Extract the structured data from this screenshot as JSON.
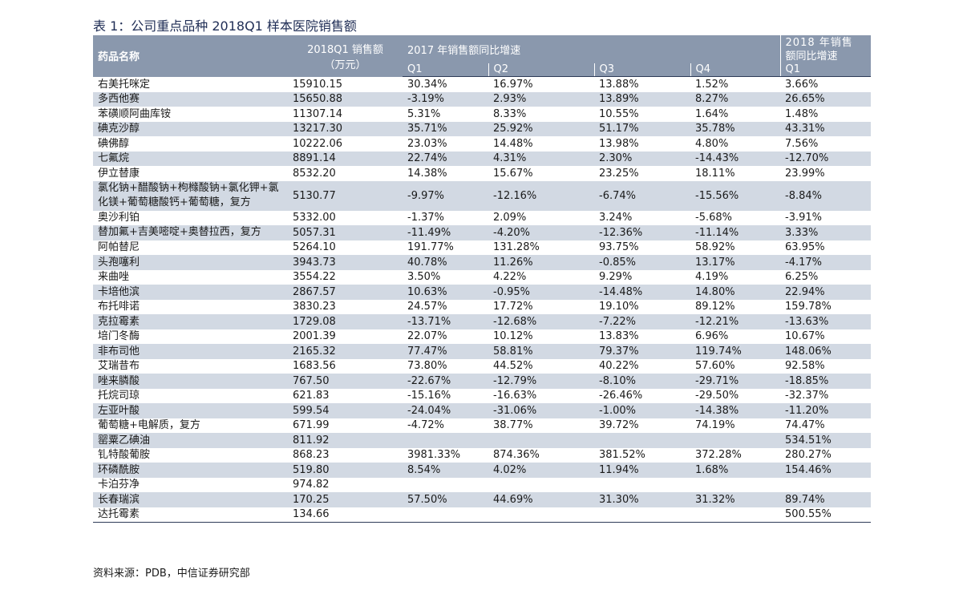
{
  "title": "表 1：公司重点品种 2018Q1 样本医院销售额",
  "header": {
    "drug_name": "药品名称",
    "sales_2018q1_line1": "2018Q1 销售额",
    "sales_2018q1_line2": "（万元）",
    "growth_2017": "2017 年销售额同比增速",
    "growth_2018_line1": "2018 年销售",
    "growth_2018_line2": "额同比增速",
    "quarters": [
      "Q1",
      "Q2",
      "Q3",
      "Q4"
    ],
    "q1_2018": "Q1"
  },
  "rows": [
    {
      "name": "右美托咪定",
      "sales": "15910.15",
      "q1": "30.34%",
      "q2": "16.97%",
      "q3": "13.88%",
      "q4": "1.52%",
      "y2018": "3.66%"
    },
    {
      "name": "多西他赛",
      "sales": "15650.88",
      "q1": "-3.19%",
      "q2": "2.93%",
      "q3": "13.89%",
      "q4": "8.27%",
      "y2018": "26.65%"
    },
    {
      "name": "苯磺顺阿曲库铵",
      "sales": "11307.14",
      "q1": "5.31%",
      "q2": "8.33%",
      "q3": "10.55%",
      "q4": "1.64%",
      "y2018": "1.48%"
    },
    {
      "name": "碘克沙醇",
      "sales": "13217.30",
      "q1": "35.71%",
      "q2": "25.92%",
      "q3": "51.17%",
      "q4": "35.78%",
      "y2018": "43.31%"
    },
    {
      "name": "碘佛醇",
      "sales": "10222.06",
      "q1": "23.03%",
      "q2": "14.48%",
      "q3": "13.98%",
      "q4": "4.80%",
      "y2018": "7.56%"
    },
    {
      "name": "七氟烷",
      "sales": "8891.14",
      "q1": "22.74%",
      "q2": "4.31%",
      "q3": "2.30%",
      "q4": "-14.43%",
      "y2018": "-12.70%"
    },
    {
      "name": "伊立替康",
      "sales": "8532.20",
      "q1": "14.38%",
      "q2": "15.67%",
      "q3": "23.25%",
      "q4": "18.11%",
      "y2018": "23.99%"
    },
    {
      "name": "氯化钠+醋酸钠+枸橼酸钠+氯化钾+氯化镁+葡萄糖酸钙+葡萄糖，复方",
      "sales": "5130.77",
      "q1": "-9.97%",
      "q2": "-12.16%",
      "q3": "-6.74%",
      "q4": "-15.56%",
      "y2018": "-8.84%"
    },
    {
      "name": "奥沙利铂",
      "sales": "5332.00",
      "q1": "-1.37%",
      "q2": "2.09%",
      "q3": "3.24%",
      "q4": "-5.68%",
      "y2018": "-3.91%"
    },
    {
      "name": "替加氟+吉美嘧啶+奥替拉西，复方",
      "sales": "5057.31",
      "q1": "-11.49%",
      "q2": "-4.20%",
      "q3": "-12.36%",
      "q4": "-11.14%",
      "y2018": "3.33%"
    },
    {
      "name": "阿帕替尼",
      "sales": "5264.10",
      "q1": "191.77%",
      "q2": "131.28%",
      "q3": "93.75%",
      "q4": "58.92%",
      "y2018": "63.95%"
    },
    {
      "name": "头孢噻利",
      "sales": "3943.73",
      "q1": "40.78%",
      "q2": "11.26%",
      "q3": "-0.85%",
      "q4": "13.17%",
      "y2018": "-4.17%"
    },
    {
      "name": "来曲唑",
      "sales": "3554.22",
      "q1": "3.50%",
      "q2": "4.22%",
      "q3": "9.29%",
      "q4": "4.19%",
      "y2018": "6.25%"
    },
    {
      "name": "卡培他滨",
      "sales": "2867.57",
      "q1": "10.63%",
      "q2": "-0.95%",
      "q3": "-14.48%",
      "q4": "14.80%",
      "y2018": "22.94%"
    },
    {
      "name": "布托啡诺",
      "sales": "3830.23",
      "q1": "24.57%",
      "q2": "17.72%",
      "q3": "19.10%",
      "q4": "89.12%",
      "y2018": "159.78%"
    },
    {
      "name": "克拉霉素",
      "sales": "1729.08",
      "q1": "-13.71%",
      "q2": "-12.68%",
      "q3": "-7.22%",
      "q4": "-12.21%",
      "y2018": "-13.63%"
    },
    {
      "name": "培门冬酶",
      "sales": "2001.39",
      "q1": "22.07%",
      "q2": "10.12%",
      "q3": "13.83%",
      "q4": "6.96%",
      "y2018": "10.67%"
    },
    {
      "name": "非布司他",
      "sales": "2165.32",
      "q1": "77.47%",
      "q2": "58.81%",
      "q3": "79.37%",
      "q4": "119.74%",
      "y2018": "148.06%"
    },
    {
      "name": "艾瑞昔布",
      "sales": "1683.56",
      "q1": "73.80%",
      "q2": "44.52%",
      "q3": "40.22%",
      "q4": "57.60%",
      "y2018": "92.58%"
    },
    {
      "name": "唑来膦酸",
      "sales": "767.50",
      "q1": "-22.67%",
      "q2": "-12.79%",
      "q3": "-8.10%",
      "q4": "-29.71%",
      "y2018": "-18.85%"
    },
    {
      "name": "托烷司琼",
      "sales": "621.83",
      "q1": "-15.16%",
      "q2": "-16.63%",
      "q3": "-26.46%",
      "q4": "-29.50%",
      "y2018": "-32.37%"
    },
    {
      "name": "左亚叶酸",
      "sales": "599.54",
      "q1": "-24.04%",
      "q2": "-31.06%",
      "q3": "-1.00%",
      "q4": "-14.38%",
      "y2018": "-11.20%"
    },
    {
      "name": "葡萄糖+电解质，复方",
      "sales": "671.99",
      "q1": "-4.72%",
      "q2": "38.77%",
      "q3": "39.72%",
      "q4": "74.19%",
      "y2018": "74.47%"
    },
    {
      "name": "罂粟乙碘油",
      "sales": "811.92",
      "q1": "",
      "q2": "",
      "q3": "",
      "q4": "",
      "y2018": "534.51%"
    },
    {
      "name": "钆特酸葡胺",
      "sales": "868.23",
      "q1": "3981.33%",
      "q2": "874.36%",
      "q3": "381.52%",
      "q4": "372.28%",
      "y2018": "280.27%"
    },
    {
      "name": "环磷酰胺",
      "sales": "519.80",
      "q1": "8.54%",
      "q2": "4.02%",
      "q3": "11.94%",
      "q4": "1.68%",
      "y2018": "154.46%"
    },
    {
      "name": "卡泊芬净",
      "sales": "974.82",
      "q1": "",
      "q2": "",
      "q3": "",
      "q4": "",
      "y2018": ""
    },
    {
      "name": "长春瑞滨",
      "sales": "170.25",
      "q1": "57.50%",
      "q2": "44.69%",
      "q3": "31.30%",
      "q4": "31.32%",
      "y2018": "89.74%"
    },
    {
      "name": "达托霉素",
      "sales": "134.66",
      "q1": "",
      "q2": "",
      "q3": "",
      "q4": "",
      "y2018": "500.55%"
    }
  ],
  "source": "资料来源：PDB，中信证券研究部"
}
